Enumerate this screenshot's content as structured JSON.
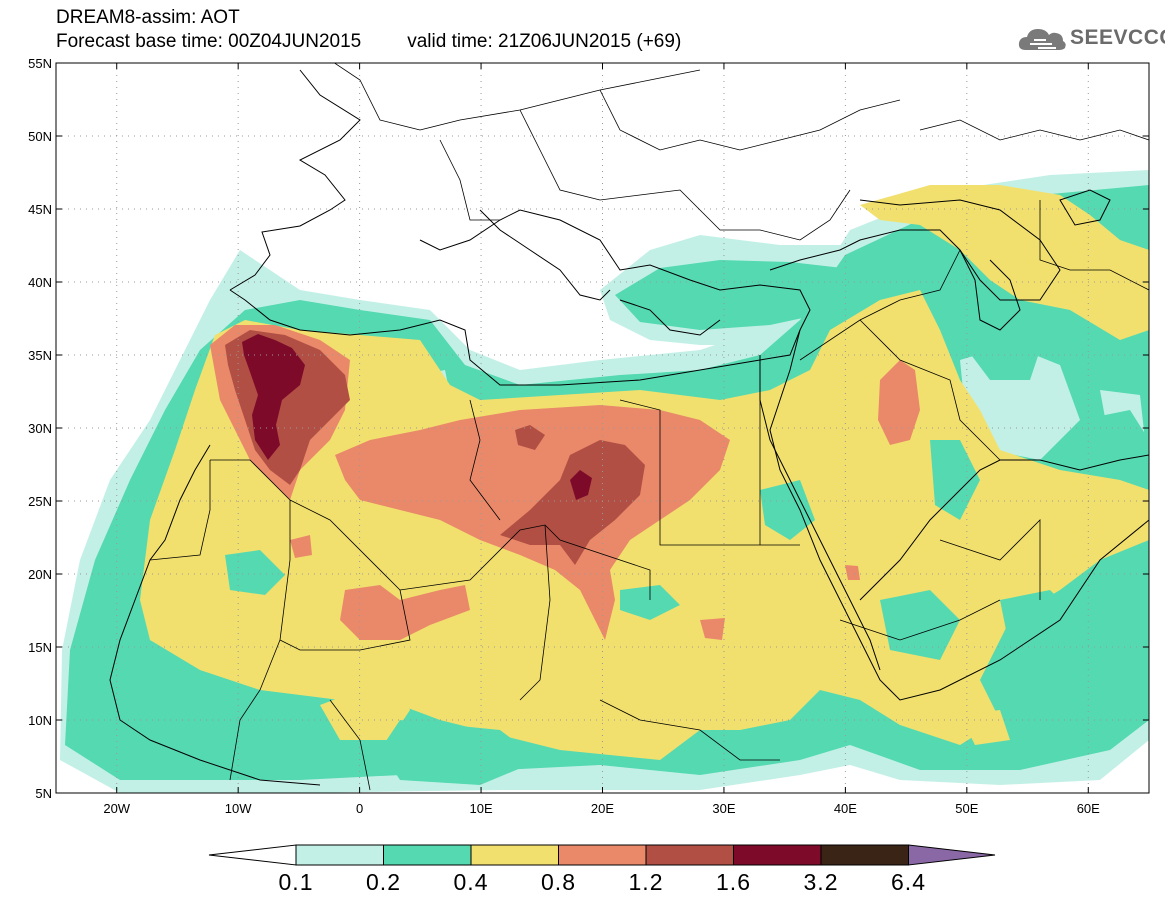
{
  "header": {
    "line1": "DREAM8-assim: AOT",
    "base_time": "Forecast base time: 00Z04JUN2015",
    "valid_time": "valid time: 21Z06JUN2015 (+69)"
  },
  "logo": {
    "text": "SEEVCCC",
    "icon": "cloud-icon"
  },
  "axes": {
    "lat_labels": [
      "55N",
      "50N",
      "45N",
      "40N",
      "35N",
      "30N",
      "25N",
      "20N",
      "15N",
      "10N",
      "5N"
    ],
    "lon_labels": [
      "20W",
      "10W",
      "0",
      "10E",
      "20E",
      "30E",
      "40E",
      "50E",
      "60E"
    ],
    "lat_range": [
      5,
      55
    ],
    "lon_range": [
      -25,
      65
    ],
    "grid": "dotted"
  },
  "colorbar": {
    "labels": [
      "0.1",
      "0.2",
      "0.4",
      "0.8",
      "1.2",
      "1.6",
      "3.2",
      "6.4"
    ],
    "colors": [
      "#ffffff",
      "#c3f0e6",
      "#54d9b1",
      "#f2e06e",
      "#e9896a",
      "#b14f44",
      "#7e0a2a",
      "#3a2416",
      "#8a68a6"
    ]
  },
  "field": {
    "name": "Aerosol Optical Thickness",
    "palette": {
      "c1": "#c3f0e6",
      "c2": "#54d9b1",
      "c3": "#f2e06e",
      "c4": "#e9896a",
      "c5": "#b14f44",
      "c6": "#7e0a2a"
    }
  }
}
